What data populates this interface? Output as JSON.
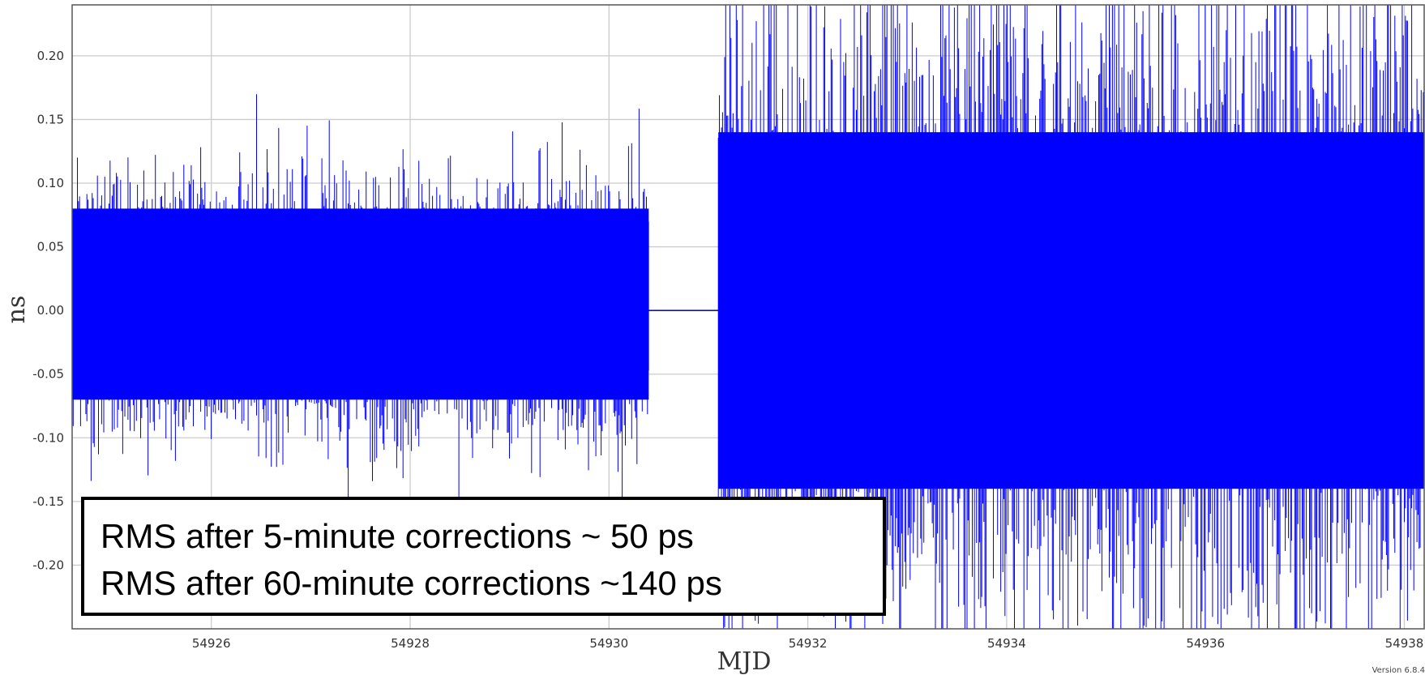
{
  "chart_data": {
    "type": "line",
    "title": "",
    "xlabel": "MJD",
    "ylabel": "ns",
    "xlim": [
      54924.6,
      54938.2
    ],
    "ylim": [
      -0.25,
      0.24
    ],
    "xticks": [
      54926,
      54928,
      54930,
      54932,
      54934,
      54936,
      54938
    ],
    "yticks": [
      0.2,
      0.15,
      0.1,
      0.05,
      0.0,
      -0.05,
      -0.1,
      -0.15,
      -0.2
    ],
    "ytick_labels": [
      "0.20",
      "0.15",
      "0.10",
      "0.05",
      "0.00",
      "-0.05",
      "-0.10",
      "-0.15",
      "-0.20"
    ],
    "grid": true,
    "series": [
      {
        "segment": "before-gap",
        "x_range": [
          54924.6,
          54930.4
        ],
        "rms": 0.05,
        "typical_band": [
          -0.07,
          0.08
        ]
      },
      {
        "segment": "gap",
        "x_range": [
          54930.4,
          54931.1
        ],
        "value": 0.0
      },
      {
        "segment": "after-gap",
        "x_range": [
          54931.1,
          54938.2
        ],
        "rms": 0.14,
        "typical_band": [
          -0.14,
          0.14
        ]
      }
    ],
    "colors": {
      "series": "#0000ff",
      "gap_line": "#000080",
      "grid": "#cccccc"
    }
  },
  "annotation": {
    "line1": "RMS after 5-minute corrections ~ 50 ps",
    "line2": "RMS after 60-minute corrections ~140 ps"
  },
  "footer": "Version 6.8.4"
}
